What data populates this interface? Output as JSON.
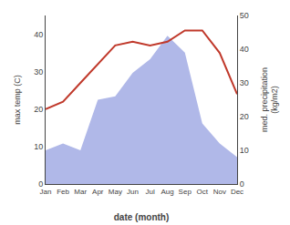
{
  "chart_data": {
    "type": "line",
    "categories": [
      "Jan",
      "Feb",
      "Mar",
      "Apr",
      "May",
      "Jun",
      "Jul",
      "Aug",
      "Sep",
      "Oct",
      "Nov",
      "Dec"
    ],
    "series": [
      {
        "type": "area",
        "axis": "y2",
        "color": "#b0b8e8",
        "values": [
          10,
          12,
          10,
          25,
          26,
          33,
          37,
          44,
          39,
          18,
          12,
          8
        ]
      },
      {
        "type": "line",
        "color": "#c0392b",
        "values": [
          20,
          22,
          27,
          32,
          37,
          38,
          37,
          38,
          41,
          41,
          35,
          24
        ]
      }
    ],
    "xlabel": "date (month)",
    "ylabel": "max temp (C)",
    "y2label": "med. precipitation\n(kg/m2)",
    "ylim": [
      0,
      45
    ],
    "yticks": [
      0,
      10,
      20,
      30,
      40
    ],
    "y2lim": [
      0,
      50
    ],
    "y2ticks": [
      0,
      10,
      20,
      30,
      40,
      50
    ],
    "grid": false
  }
}
